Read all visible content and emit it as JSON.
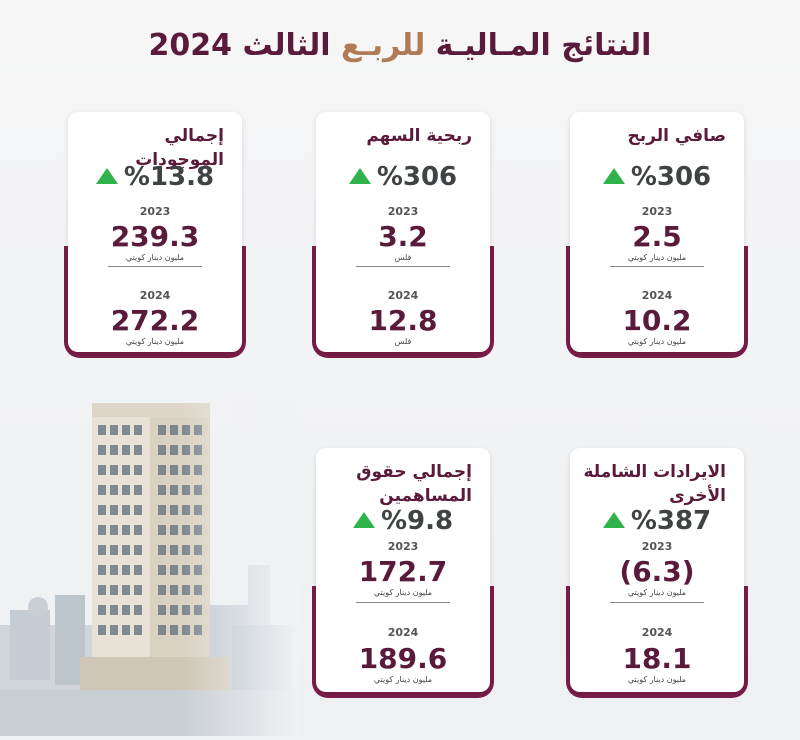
{
  "title": {
    "part1": "النتائج المـاليـة",
    "part2": "للربـع",
    "part3": "الثالث 2024"
  },
  "cards": [
    {
      "label": "إجمالي الموجودات",
      "pct": "%13.8",
      "y1": "2023",
      "v1": "239.3",
      "u1": "مليون دينار كويتي",
      "y2": "2024",
      "v2": "272.2",
      "u2": "مليون دينار كويتي"
    },
    {
      "label": "ربحية السهم",
      "pct": "%306",
      "y1": "2023",
      "v1": "3.2",
      "u1": "فلس",
      "y2": "2024",
      "v2": "12.8",
      "u2": "فلس"
    },
    {
      "label": "صافي الربح",
      "pct": "%306",
      "y1": "2023",
      "v1": "2.5",
      "u1": "مليون دينار كويتي",
      "y2": "2024",
      "v2": "10.2",
      "u2": "مليون دينار كويتي"
    },
    {
      "label": "إجمالي حقوق المساهمين",
      "pct": "%9.8",
      "y1": "2023",
      "v1": "172.7",
      "u1": "مليون دينار كويتي",
      "y2": "2024",
      "v2": "189.6",
      "u2": "مليون دينار كويتي"
    },
    {
      "label": "الايرادات الشاملة الأخرى",
      "pct": "%387",
      "y1": "2023",
      "v1": "(6.3)",
      "u1": "مليون دينار كويتي",
      "y2": "2024",
      "v2": "18.1",
      "u2": "مليون دينار كويتي"
    }
  ],
  "colors": {
    "primary": "#7a1d48",
    "up": "#2fb34a",
    "accent": "#b07a55"
  },
  "icons": [
    "up-arrow-icon"
  ]
}
